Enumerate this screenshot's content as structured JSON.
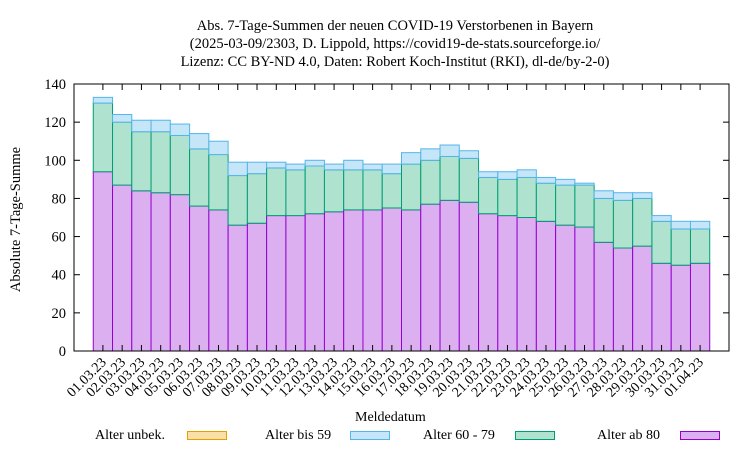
{
  "chart_data": {
    "type": "bar",
    "stacked": true,
    "title_lines": [
      "Abs. 7-Tage-Summen der neuen COVID-19 Verstorbenen in Bayern",
      "(2025-03-09/2303, D. Lippold, https://covid19-de-stats.sourceforge.io/",
      "Lizenz: CC BY-ND 4.0, Daten: Robert Koch-Institut (RKI), dl-de/by-2-0)"
    ],
    "xlabel": "Meldedatum",
    "ylabel": "Absolute 7-Tage-Summe",
    "ylim": [
      0,
      140
    ],
    "yticks": [
      0,
      20,
      40,
      60,
      80,
      100,
      120,
      140
    ],
    "categories": [
      "01.03.23",
      "02.03.23",
      "03.03.23",
      "04.03.23",
      "05.03.23",
      "06.03.23",
      "07.03.23",
      "08.03.23",
      "09.03.23",
      "10.03.23",
      "11.03.23",
      "12.03.23",
      "13.03.23",
      "14.03.23",
      "15.03.23",
      "16.03.23",
      "17.03.23",
      "18.03.23",
      "19.03.23",
      "20.03.23",
      "21.03.23",
      "22.03.23",
      "23.03.23",
      "24.03.23",
      "25.03.23",
      "26.03.23",
      "27.03.23",
      "28.03.23",
      "29.03.23",
      "30.03.23",
      "31.03.23",
      "01.04.23"
    ],
    "series": [
      {
        "name": "Alter ab 80",
        "fill": "#dcb0f0",
        "stroke": "#9400d3",
        "values": [
          94,
          87,
          84,
          83,
          82,
          76,
          74,
          66,
          67,
          71,
          71,
          72,
          73,
          74,
          74,
          75,
          74,
          77,
          79,
          78,
          72,
          71,
          70,
          68,
          66,
          65,
          57,
          54,
          55,
          46,
          45,
          46
        ]
      },
      {
        "name": "Alter 60 - 79",
        "fill": "#b0e2d0",
        "stroke": "#009e73",
        "values": [
          36,
          33,
          31,
          32,
          31,
          30,
          29,
          26,
          26,
          25,
          24,
          25,
          22,
          21,
          21,
          18,
          24,
          23,
          23,
          23,
          19,
          19,
          21,
          20,
          21,
          22,
          23,
          25,
          25,
          22,
          19,
          18
        ]
      },
      {
        "name": "Alter bis 59",
        "fill": "#c4e6f8",
        "stroke": "#56b4e9",
        "values": [
          3,
          4,
          6,
          6,
          6,
          8,
          7,
          7,
          6,
          3,
          3,
          3,
          3,
          5,
          3,
          5,
          6,
          6,
          6,
          4,
          3,
          4,
          4,
          3,
          3,
          1,
          4,
          4,
          3,
          3,
          4,
          4
        ]
      },
      {
        "name": "Alter unbek.",
        "fill": "#f8e0a8",
        "stroke": "#e69f00",
        "values": [
          0,
          0,
          0,
          0,
          0,
          0,
          0,
          0,
          0,
          0,
          0,
          0,
          0,
          0,
          0,
          0,
          0,
          0,
          0,
          0,
          0,
          0,
          0,
          0,
          0,
          0,
          0,
          0,
          0,
          0,
          0,
          0
        ]
      }
    ],
    "legend": [
      {
        "label": "Alter unbek.",
        "fill": "#f8e0a8",
        "stroke": "#e69f00"
      },
      {
        "label": "Alter bis 59",
        "fill": "#c4e6f8",
        "stroke": "#56b4e9"
      },
      {
        "label": "Alter 60 - 79",
        "fill": "#b0e2d0",
        "stroke": "#009e73"
      },
      {
        "label": "Alter ab 80",
        "fill": "#dcb0f0",
        "stroke": "#9400d3"
      }
    ]
  }
}
